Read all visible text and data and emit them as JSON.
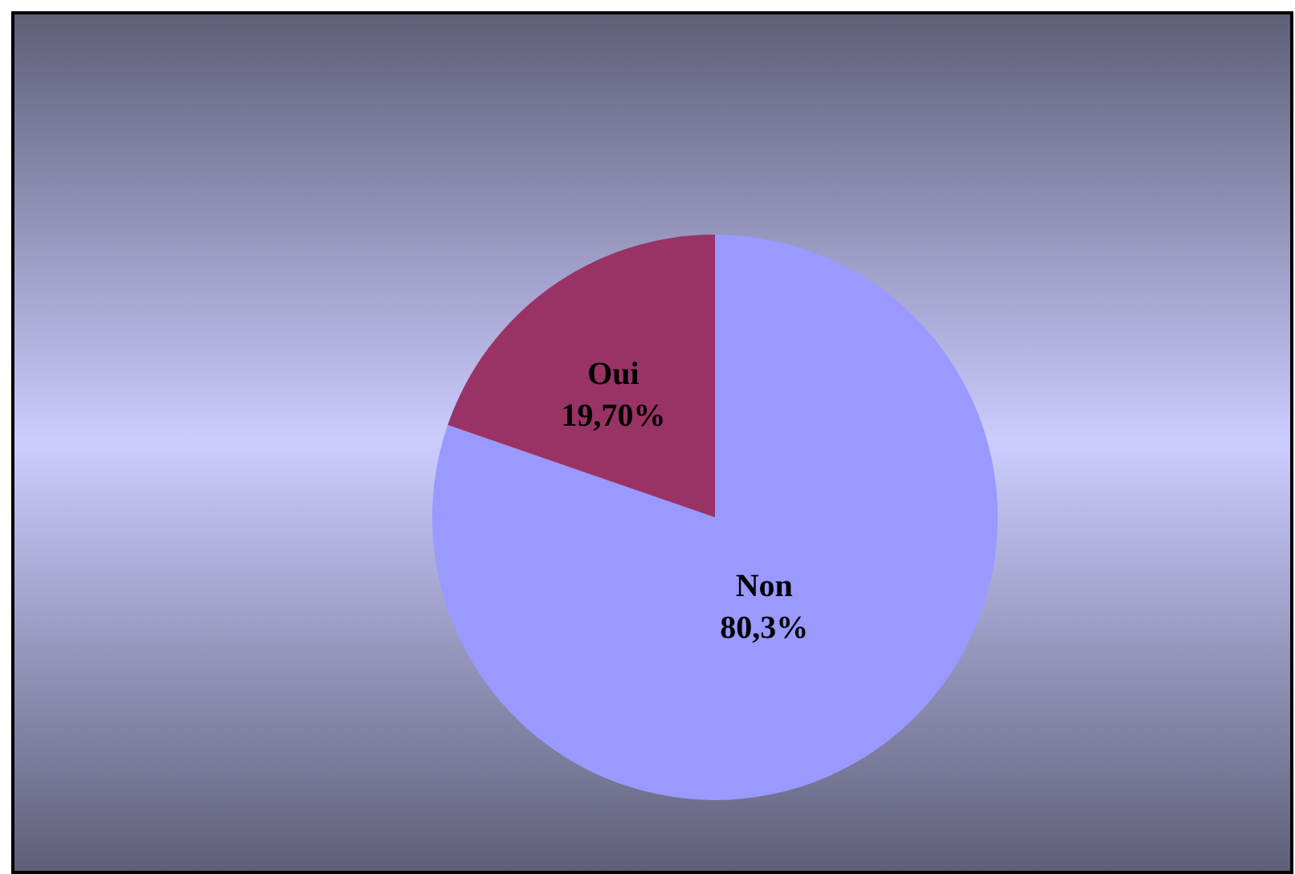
{
  "chart_data": {
    "type": "pie",
    "categories": [
      "Non",
      "Oui"
    ],
    "values": [
      80.3,
      19.7
    ],
    "colors": [
      "#9999ff",
      "#993366"
    ],
    "value_labels": [
      "80,3%",
      "19,70%"
    ]
  }
}
